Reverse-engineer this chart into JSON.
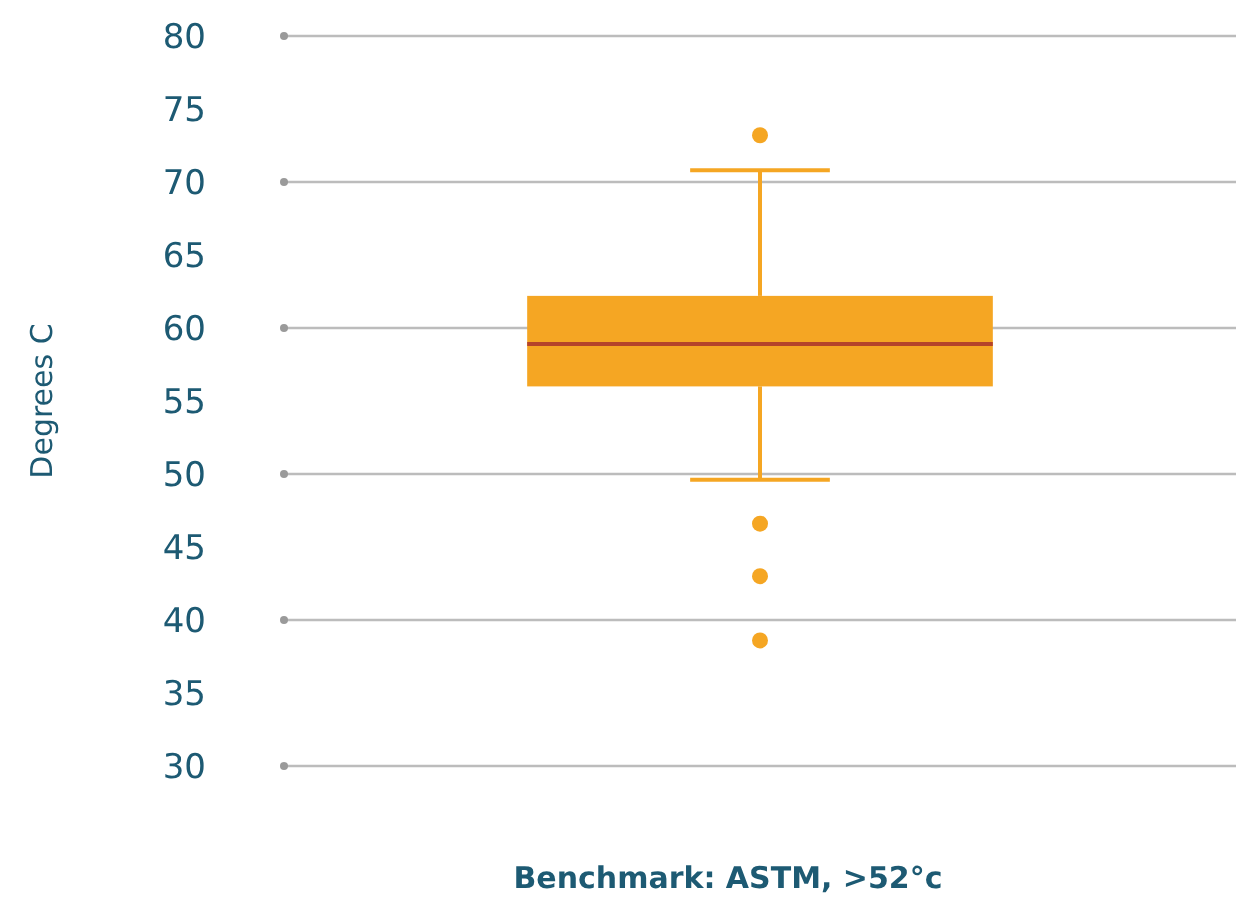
{
  "chart_data": {
    "type": "box",
    "xlabel": "Benchmark: ASTM, >52°c",
    "ylabel": "Degrees C",
    "categories": [
      null
    ],
    "series": [
      {
        "color": "#f5a623",
        "boxes": [
          {
            "low": 49.6,
            "q1": 56.0,
            "median": 58.9,
            "q3": 62.2,
            "high": 70.8,
            "outliers": [
              73.2,
              46.6,
              43.0,
              38.6
            ]
          }
        ]
      }
    ],
    "ylim": [
      30,
      80
    ],
    "yticks": [
      30,
      35,
      40,
      45,
      50,
      55,
      60,
      65,
      70,
      75,
      80
    ],
    "grid": "y"
  }
}
